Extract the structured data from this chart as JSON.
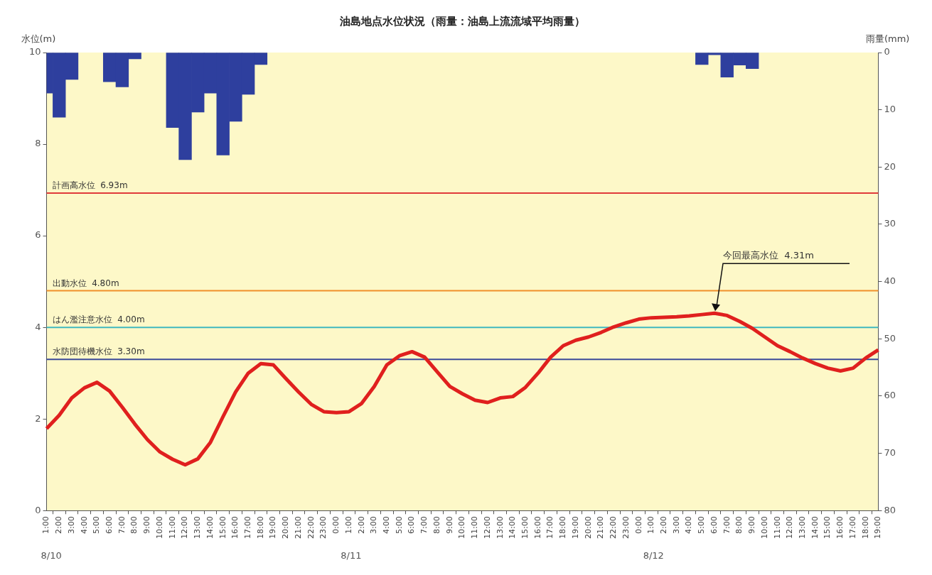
{
  "chart_data": {
    "type": "line",
    "title": "油島地点水位状況（雨量：油島上流流域平均雨量）",
    "ylabel": "水位(m)",
    "y2label": "雨量(mm)",
    "categories": [
      "1:00",
      "2:00",
      "3:00",
      "4:00",
      "5:00",
      "6:00",
      "7:00",
      "8:00",
      "9:00",
      "10:00",
      "11:00",
      "12:00",
      "13:00",
      "14:00",
      "15:00",
      "16:00",
      "17:00",
      "18:00",
      "19:00",
      "20:00",
      "21:00",
      "22:00",
      "23:00",
      "0:00",
      "1:00",
      "2:00",
      "3:00",
      "4:00",
      "5:00",
      "6:00",
      "7:00",
      "8:00",
      "9:00",
      "10:00",
      "11:00",
      "12:00",
      "13:00",
      "14:00",
      "15:00",
      "16:00",
      "17:00",
      "18:00",
      "19:00",
      "20:00",
      "21:00",
      "22:00",
      "23:00",
      "0:00",
      "1:00",
      "2:00",
      "3:00",
      "4:00",
      "5:00",
      "6:00",
      "7:00",
      "8:00",
      "9:00",
      "10:00",
      "11:00",
      "12:00",
      "13:00",
      "14:00",
      "15:00",
      "16:00",
      "17:00",
      "18:00",
      "19:00"
    ],
    "series": [
      {
        "type": "bar",
        "axis": "y2",
        "color": "#2e3f9e",
        "values": [
          7.1,
          11.3,
          4.7,
          null,
          null,
          5.1,
          6.0,
          1.1,
          null,
          null,
          13.1,
          18.7,
          10.4,
          7.1,
          17.9,
          12.0,
          7.3,
          2.1,
          null,
          null,
          null,
          null,
          null,
          null,
          null,
          null,
          null,
          null,
          null,
          null,
          null,
          null,
          null,
          null,
          null,
          null,
          null,
          null,
          null,
          null,
          null,
          null,
          null,
          null,
          null,
          null,
          null,
          null,
          null,
          null,
          null,
          null,
          2.1,
          0.4,
          4.3,
          2.2,
          2.8,
          null,
          null,
          null,
          null,
          null,
          null,
          null,
          null,
          null,
          null
        ]
      },
      {
        "color": "#e0201e",
        "values": [
          1.79,
          2.08,
          2.46,
          2.68,
          2.8,
          2.61,
          2.26,
          1.89,
          1.55,
          1.28,
          1.12,
          1.0,
          1.13,
          1.49,
          2.05,
          2.59,
          3.0,
          3.21,
          3.18,
          2.88,
          2.59,
          2.32,
          2.16,
          2.14,
          2.16,
          2.34,
          2.71,
          3.18,
          3.38,
          3.47,
          3.35,
          3.03,
          2.71,
          2.55,
          2.41,
          2.36,
          2.46,
          2.49,
          2.69,
          3.0,
          3.35,
          3.6,
          3.72,
          3.79,
          3.89,
          4.01,
          4.1,
          4.18,
          4.21,
          4.22,
          4.23,
          4.25,
          4.28,
          4.31,
          4.26,
          4.13,
          3.98,
          3.79,
          3.6,
          3.47,
          3.33,
          3.21,
          3.11,
          3.05,
          3.11,
          3.33,
          3.51
        ]
      }
    ],
    "ylim": [
      0,
      10
    ],
    "yticks": [
      0,
      2,
      4,
      6,
      8,
      10
    ],
    "y2lim": [
      80,
      0
    ],
    "y2ticks": [
      0,
      10,
      20,
      30,
      40,
      50,
      60,
      70,
      80
    ],
    "ref_lines": [
      {
        "axis": "y",
        "value": 6.93,
        "label": "計画高水位  6.93m",
        "color": "#e03a3a"
      },
      {
        "axis": "y",
        "value": 4.8,
        "label": "出動水位  4.80m",
        "color": "#f0902a"
      },
      {
        "axis": "y",
        "value": 4.0,
        "label": "はん濫注意水位  4.00m",
        "color": "#40b8c0"
      },
      {
        "axis": "y",
        "value": 3.3,
        "label": "水防団待機水位  3.30m",
        "color": "#3a4a9a"
      }
    ],
    "annotations": [
      "今回最高水位  4.31m",
      "8/10",
      "8/11",
      "8/12"
    ],
    "grid": false,
    "legend": false,
    "marker": "none",
    "line_style": "solid"
  }
}
